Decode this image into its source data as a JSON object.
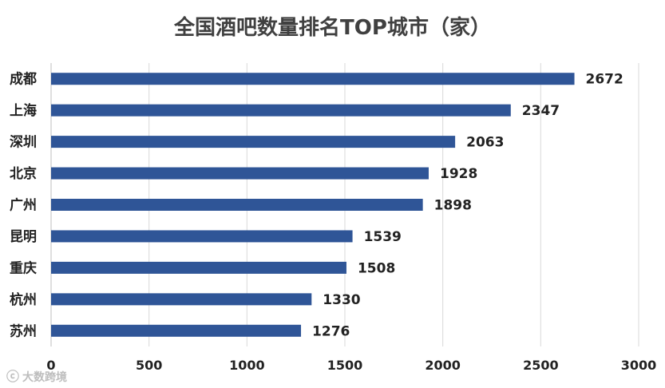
{
  "chart_data": {
    "type": "bar",
    "orientation": "horizontal",
    "title": "全国酒吧数量排名TOP城市（家）",
    "categories": [
      "成都",
      "上海",
      "深圳",
      "北京",
      "广州",
      "昆明",
      "重庆",
      "杭州",
      "苏州"
    ],
    "values": [
      2672,
      2347,
      2063,
      1928,
      1898,
      1539,
      1508,
      1330,
      1276
    ],
    "xlim": [
      0,
      3000
    ],
    "xticks": [
      0,
      500,
      1000,
      1500,
      2000,
      2500,
      3000
    ],
    "grid": "vertical",
    "bar_color": "#2f5597",
    "data_labels": true
  },
  "watermark": {
    "text": "大数跨境"
  }
}
